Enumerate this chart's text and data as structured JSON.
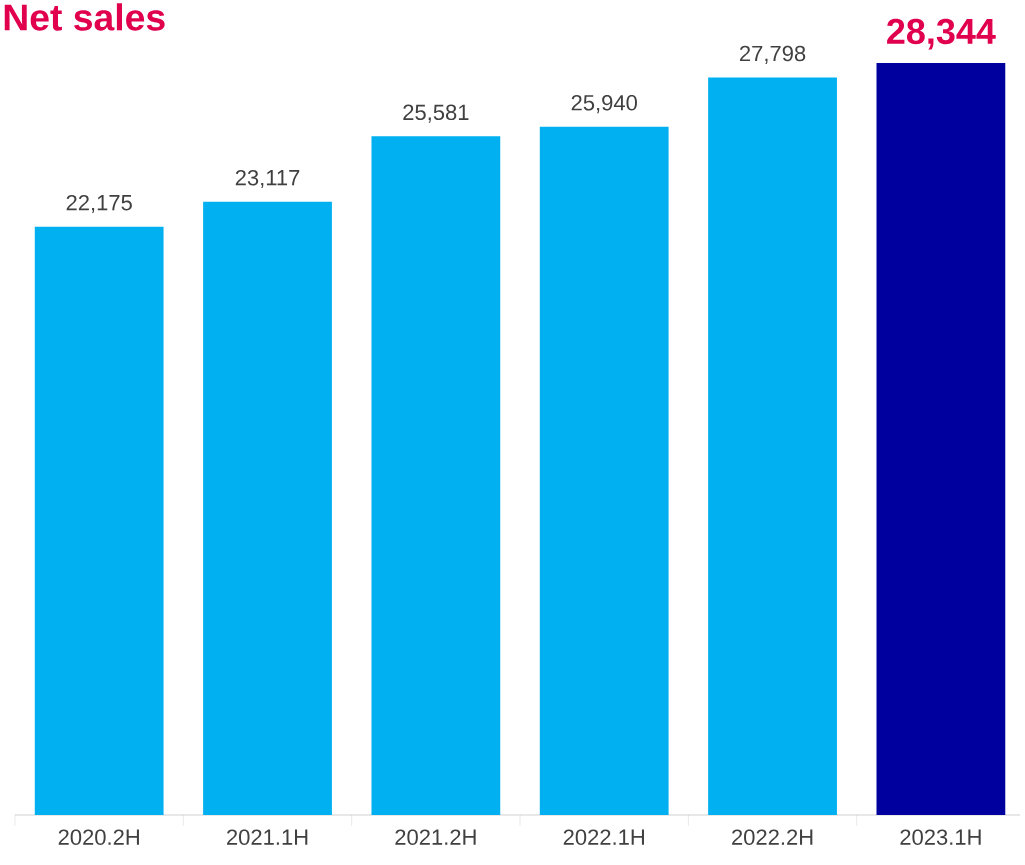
{
  "chart_data": {
    "type": "bar",
    "title": "Net sales",
    "categories": [
      "2020.2H",
      "2021.1H",
      "2021.2H",
      "2022.1H",
      "2022.2H",
      "2023.1H"
    ],
    "values": [
      22175,
      23117,
      25581,
      25940,
      27798,
      28344
    ],
    "colors": [
      "#00b0f0",
      "#00b0f0",
      "#00b0f0",
      "#00b0f0",
      "#00b0f0",
      "#00009f"
    ],
    "value_labels": [
      "22,175",
      "23,117",
      "25,581",
      "25,940",
      "27,798",
      "**28,344**"
    ],
    "tick_labels": "x"
  }
}
